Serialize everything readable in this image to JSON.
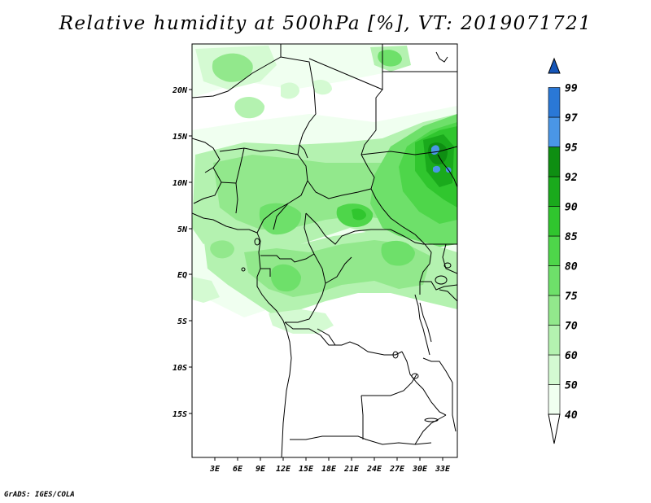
{
  "title": "Relative humidity at 500hPa [%], VT: 2019071721",
  "footer": "GrADS: IGES/COLA",
  "map": {
    "lat_labels": [
      "20N",
      "15N",
      "10N",
      "5N",
      "EQ",
      "5S",
      "10S",
      "15S"
    ],
    "lon_labels": [
      "3E",
      "6E",
      "9E",
      "12E",
      "15E",
      "18E",
      "21E",
      "24E",
      "27E",
      "30E",
      "33E"
    ]
  },
  "colorbar": {
    "levels": [
      "40",
      "50",
      "60",
      "70",
      "75",
      "80",
      "85",
      "90",
      "92",
      "95",
      "97",
      "99"
    ],
    "colors": [
      "#f0fff0",
      "#d4fad2",
      "#b4f2b0",
      "#92e88c",
      "#6ee06a",
      "#4ed64a",
      "#30c62e",
      "#1aaa1c",
      "#0e8e12",
      "#4a96e6",
      "#2a78d6",
      "#1656b8"
    ]
  }
}
